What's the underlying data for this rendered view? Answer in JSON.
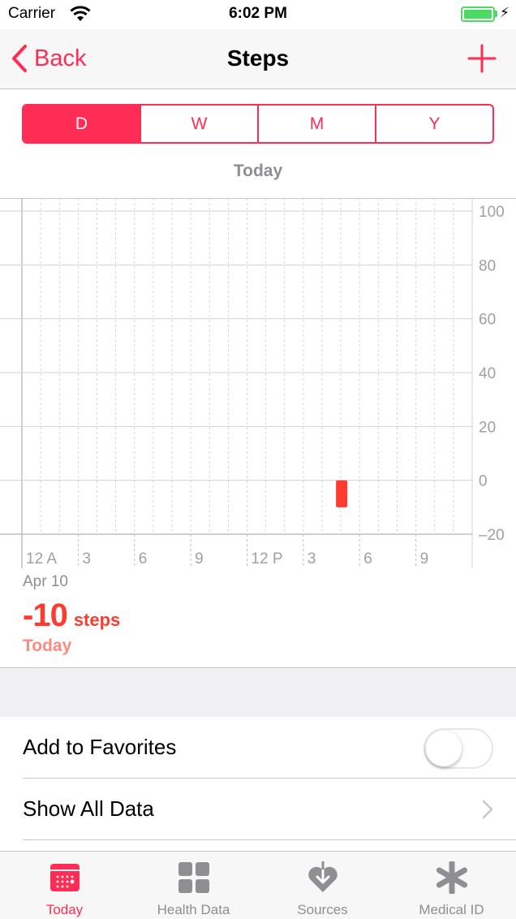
{
  "status_bar": {
    "carrier": "Carrier",
    "time": "6:02 PM"
  },
  "nav": {
    "back_label": "Back",
    "title": "Steps"
  },
  "segments": [
    {
      "label": "D",
      "active": true
    },
    {
      "label": "W",
      "active": false
    },
    {
      "label": "M",
      "active": false
    },
    {
      "label": "Y",
      "active": false
    }
  ],
  "range_label": "Today",
  "chart_data": {
    "type": "bar",
    "x_tick_labels": [
      "12 A",
      "3",
      "6",
      "9",
      "12 P",
      "3",
      "6",
      "9"
    ],
    "y_tick_labels": [
      "100",
      "80",
      "60",
      "40",
      "20",
      "0",
      "–20"
    ],
    "ylim": [
      -20,
      100
    ],
    "x_range_hours": [
      0,
      24
    ],
    "bars": [
      {
        "hour": 17,
        "value": -10
      }
    ],
    "color": "#ff3b30"
  },
  "summary": {
    "date": "Apr 10",
    "value": "-10",
    "unit": "steps",
    "period": "Today"
  },
  "rows": {
    "favorites_label": "Add to Favorites",
    "favorites_on": false,
    "show_all_label": "Show All Data"
  },
  "tabs": [
    {
      "label": "Today",
      "icon": "calendar-icon",
      "active": true
    },
    {
      "label": "Health Data",
      "icon": "grid-icon",
      "active": false
    },
    {
      "label": "Sources",
      "icon": "heart-download-icon",
      "active": false
    },
    {
      "label": "Medical ID",
      "icon": "asterisk-icon",
      "active": false
    }
  ],
  "colors": {
    "accent": "#ff2d55",
    "bar": "#ff3b30",
    "gray": "#8e8e93",
    "battery": "#4cd964"
  }
}
